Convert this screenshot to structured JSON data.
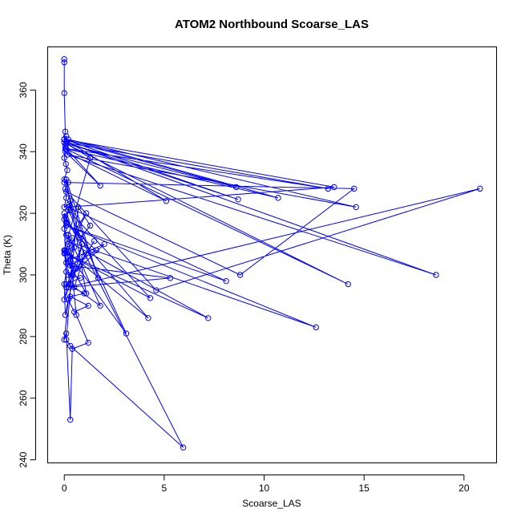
{
  "chart_data": {
    "type": "line",
    "title": "ATOM2 Northbound Scoarse_LAS",
    "xlabel": "Scoarse_LAS",
    "ylabel": "Theta (K)",
    "xlim": [
      -0.83,
      21.63
    ],
    "ylim": [
      239.0,
      374.0
    ],
    "x_ticks": [
      0,
      5,
      10,
      15,
      20
    ],
    "y_ticks": [
      240,
      260,
      280,
      300,
      320,
      340,
      360
    ],
    "grid": false,
    "series": [
      {
        "color": "#0000ff",
        "x": [
          0.0,
          0.0,
          0.0,
          0.05,
          0.0,
          0.1,
          0.12,
          0.05,
          0.0,
          0.08,
          0.15,
          0.0,
          0.2,
          0.05,
          0.1,
          0.0,
          0.25,
          0.3,
          0.05,
          0.15,
          0.0,
          0.1,
          0.4,
          0.2,
          0.05,
          0.5,
          0.3,
          0.1,
          0.6,
          0.2,
          0.8,
          0.1,
          1.0,
          0.3,
          1.2,
          0.5,
          0.2,
          0.9,
          0.1,
          1.5,
          0.4,
          2.0,
          0.3,
          0.6,
          1.1,
          0.2,
          0.4,
          0.7,
          1.3,
          0.8,
          0.1,
          0.3,
          1.0,
          0.5,
          1.8,
          0.2,
          0.6,
          1.2,
          0.4,
          0.3,
          0.1,
          0.0,
          0.2,
          0.05,
          0.0,
          0.1,
          0.0,
          1.3,
          0.0,
          13.2,
          0.1,
          1.8,
          0.05,
          5.1,
          0.0,
          8.7,
          0.1,
          18.6,
          0.15,
          14.6,
          0.2,
          10.7,
          0.05,
          14.2,
          0.1,
          8.6,
          0.0,
          13.5,
          0.2,
          8.1,
          0.1,
          12.6,
          0.15,
          7.2,
          0.05,
          4.3,
          0.2,
          3.1,
          0.05,
          4.2,
          0.1,
          1.6,
          0.3,
          5.3,
          0.2,
          20.8,
          4.6,
          0.1,
          8.8,
          14.5,
          0.0,
          1.7,
          0.1,
          1.1,
          0.2,
          0.0,
          0.3,
          0.0,
          0.4,
          0.1,
          0.3,
          5.95,
          0.0,
          0.1,
          0.0
        ],
        "y": [
          370.0,
          369.0,
          359.0,
          346.5,
          344.0,
          345.0,
          343.0,
          342.0,
          338.0,
          336.0,
          334.0,
          331.0,
          330.0,
          328.0,
          325.0,
          322.0,
          323.0,
          321.0,
          319.0,
          317.0,
          315.0,
          313.0,
          312.0,
          310.0,
          308.0,
          309.0,
          306.0,
          304.0,
          302.0,
          300.0,
          299.0,
          297.0,
          294.0,
          293.0,
          290.0,
          288.0,
          292.0,
          310.0,
          296.0,
          311.0,
          300.0,
          310.0,
          305.0,
          315.0,
          320.0,
          308.0,
          303.0,
          322.0,
          316.0,
          312.0,
          318.0,
          324.0,
          306.0,
          296.0,
          290.0,
          313.0,
          287.0,
          278.0,
          276.0,
          253.0,
          281.0,
          279.0,
          292.0,
          287.0,
          297.0,
          301.0,
          308.0,
          338.0,
          343.0,
          328.0,
          341.0,
          329.0,
          340.0,
          324.0,
          344.0,
          324.5,
          343.0,
          300.0,
          339.0,
          322.0,
          344.0,
          325.0,
          341.0,
          297.0,
          342.5,
          328.5,
          344.0,
          328.5,
          322.0,
          298.0,
          316.0,
          283.0,
          311.0,
          286.0,
          307.0,
          292.5,
          321.0,
          281.0,
          308.0,
          286.0,
          317.0,
          308.0,
          303.0,
          299.0,
          296.0,
          328.0,
          295.0,
          327.0,
          300.0,
          328.0,
          330.0,
          299.0,
          331.0,
          294.0,
          304.0,
          307.0,
          297.0,
          292.0,
          303.0,
          279.0,
          277.0,
          244.0,
          320.0,
          297.0,
          318.0
        ]
      }
    ]
  }
}
